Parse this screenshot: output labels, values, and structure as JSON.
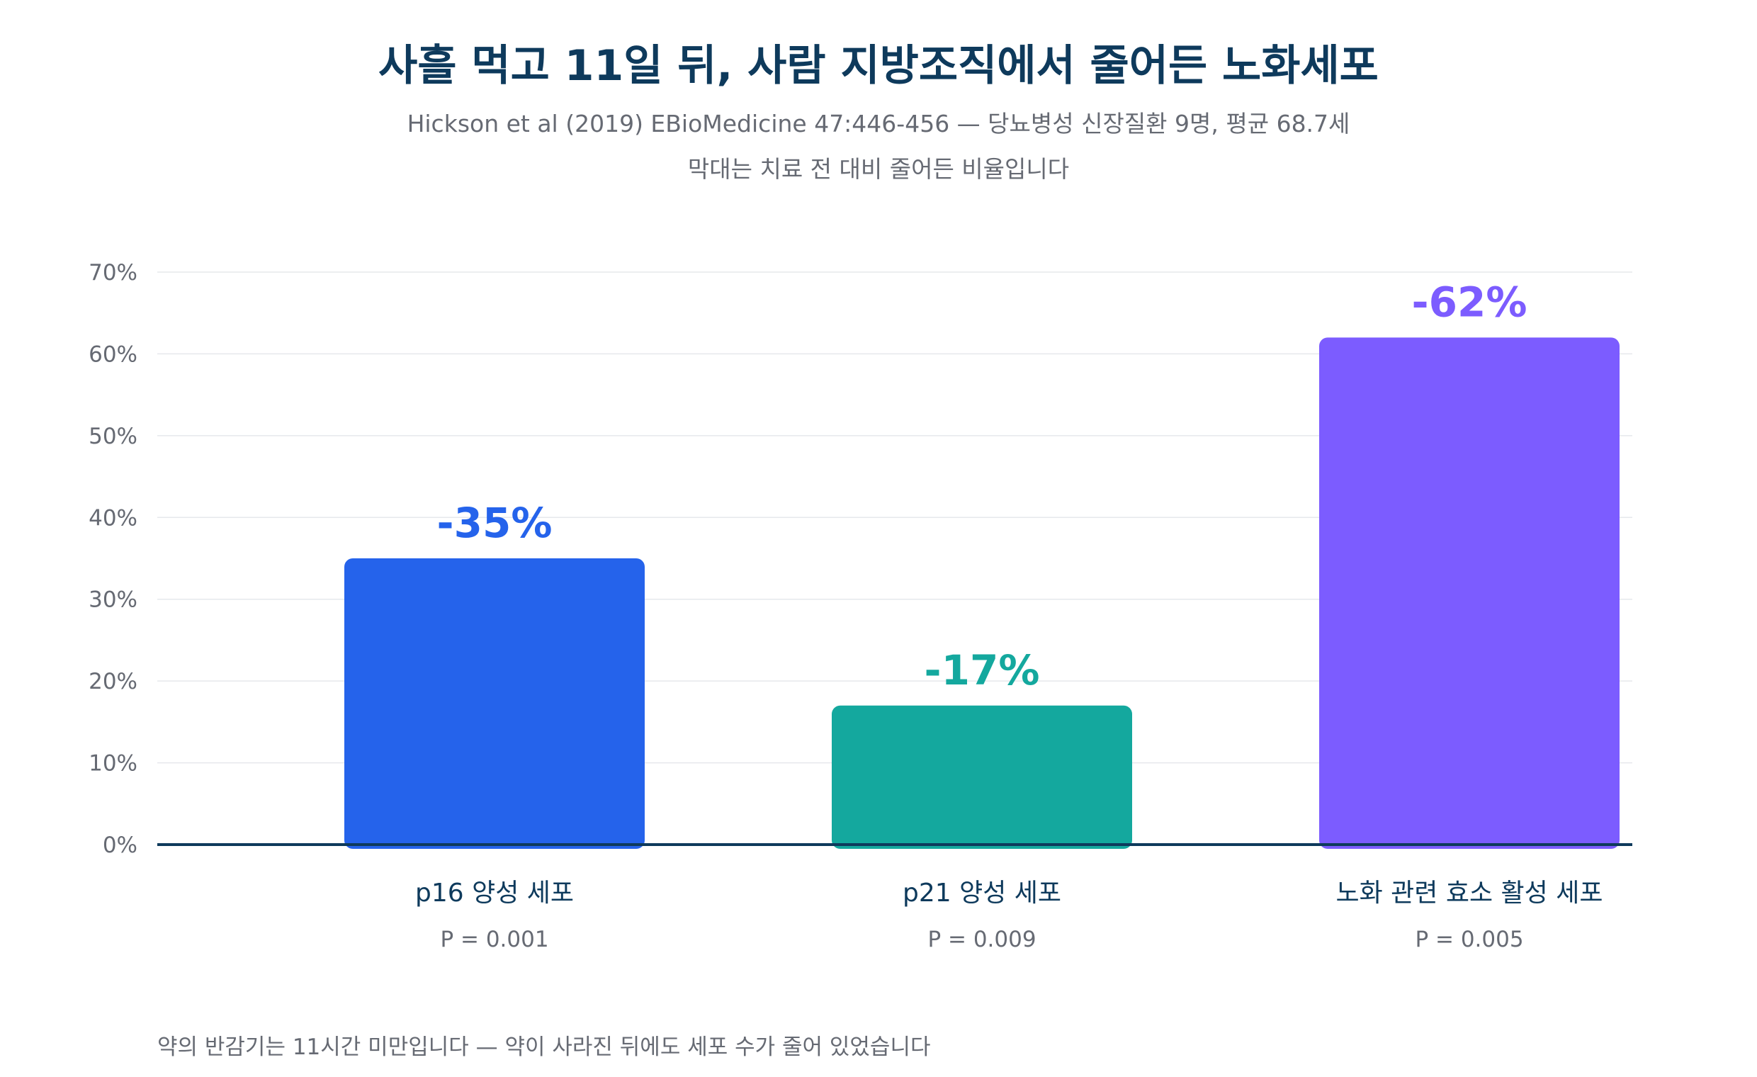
{
  "title": "사흘 먹고 11일 뒤, 사람 지방조직에서 줄어든 노화세포",
  "subtitle": "Hickson et al (2019) EBioMedicine 47:446-456 — 당뇨병성 신장질환 9명, 평균 68.7세",
  "subtitle2": "막대는 치료 전 대비 줄어든 비율입니다",
  "footnote": "약의 반감기는 11시간 미만입니다 — 약이 사라진 뒤에도 세포 수가 줄어 있었습니다",
  "chart_data": {
    "type": "bar",
    "categories": [
      "p16 양성 세포",
      "p21 양성 세포",
      "노화 관련 효소 활성 세포"
    ],
    "values": [
      35,
      17,
      62
    ],
    "value_labels": [
      "-35%",
      "-17%",
      "-62%"
    ],
    "p_values": [
      "P = 0.001",
      "P = 0.009",
      "P = 0.005"
    ],
    "colors": [
      "#2563eb",
      "#14a89e",
      "#7c5cff"
    ],
    "ylim": [
      0,
      70
    ],
    "yticks": [
      0,
      10,
      20,
      30,
      40,
      50,
      60,
      70
    ],
    "ytick_labels": [
      "0%",
      "10%",
      "20%",
      "30%",
      "40%",
      "50%",
      "60%",
      "70%"
    ],
    "grid": true,
    "axis_color": "#0e3a5c"
  }
}
